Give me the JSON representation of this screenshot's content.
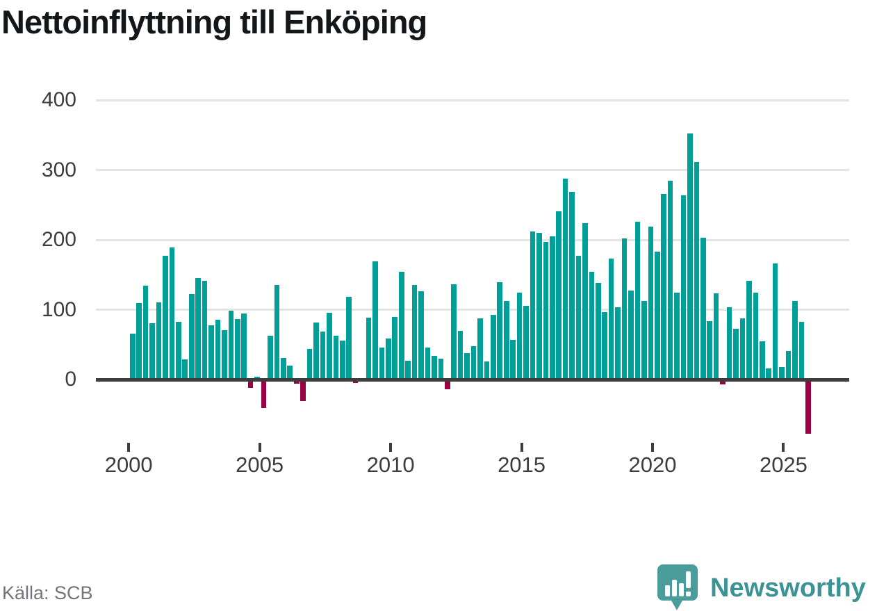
{
  "header": {
    "title": "Nettoinflyttning till Enköping"
  },
  "footer": {
    "source": "Källa: SCB",
    "brand": "Newsworthy"
  },
  "chart_data": {
    "type": "bar",
    "title": "Nettoinflyttning till Enköping",
    "xlabel": "",
    "ylabel": "",
    "frequency": "quarterly",
    "start_period": "2000-Q1",
    "end_period": "2025-Q4",
    "values": [
      66,
      109,
      134,
      81,
      110,
      177,
      189,
      83,
      29,
      122,
      145,
      141,
      78,
      86,
      71,
      99,
      87,
      95,
      -12,
      4,
      -41,
      63,
      135,
      31,
      20,
      -6,
      -31,
      44,
      82,
      69,
      96,
      63,
      56,
      118,
      -5,
      1,
      89,
      169,
      46,
      59,
      90,
      154,
      27,
      135,
      126,
      46,
      34,
      30,
      -14,
      136,
      70,
      38,
      48,
      88,
      26,
      93,
      139,
      112,
      57,
      124,
      105,
      212,
      210,
      197,
      205,
      241,
      288,
      269,
      177,
      224,
      154,
      138,
      97,
      173,
      103,
      202,
      127,
      226,
      112,
      219,
      183,
      266,
      285,
      124,
      264,
      352,
      311,
      203,
      84,
      123,
      -7,
      103,
      73,
      88,
      141,
      124,
      55,
      16,
      166,
      18,
      41,
      112,
      83,
      -78
    ],
    "y_ticks": [
      0,
      100,
      200,
      300,
      400
    ],
    "x_ticks": [
      "2000",
      "2005",
      "2010",
      "2015",
      "2020",
      "2025"
    ],
    "ylim": [
      -90,
      410
    ],
    "grid": "horizontal",
    "legend": "none",
    "positive_color": "#00a099",
    "negative_color": "#9c0045",
    "axis_color": "#3d3d3d",
    "grid_color": "#e4e4e4",
    "label_color": "#3d3d3d",
    "source_color": "#73737a",
    "brand_color": "#3b9394",
    "logo_bubble_color": "#4a9d9a"
  }
}
